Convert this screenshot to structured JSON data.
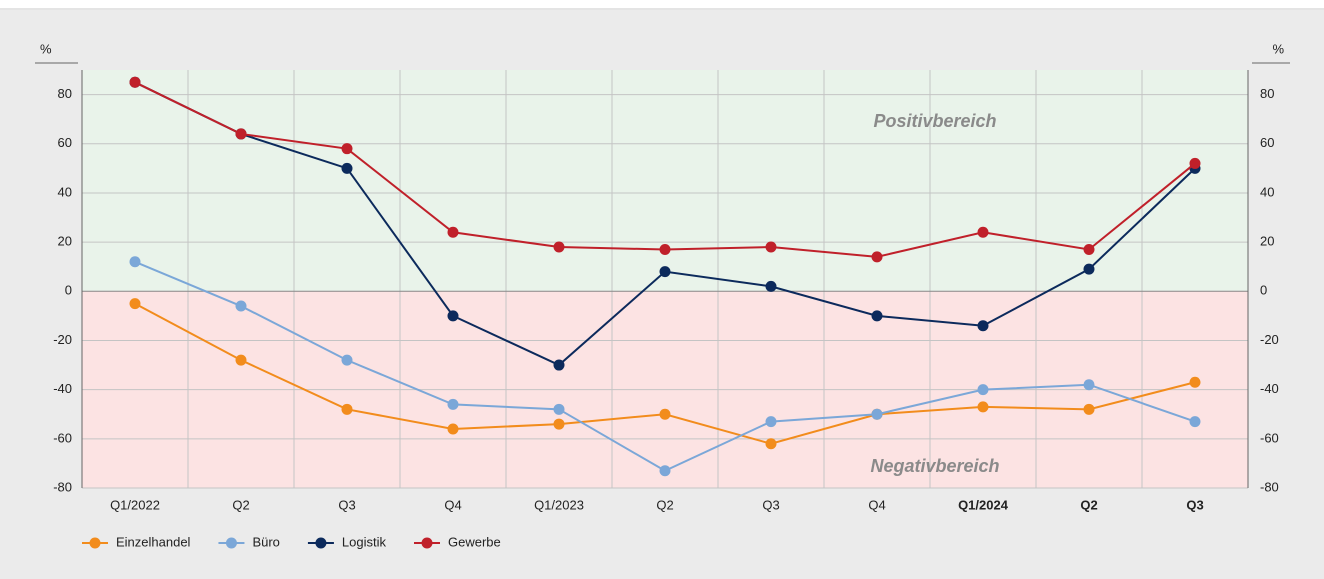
{
  "chart_data": {
    "type": "line",
    "y_unit": "%",
    "categories": [
      "Q1/2022",
      "Q2",
      "Q3",
      "Q4",
      "Q1/2023",
      "Q2",
      "Q3",
      "Q4",
      "Q1/2024",
      "Q2",
      "Q3"
    ],
    "series": [
      {
        "name": "Einzelhandel",
        "color": "#f28c1c",
        "values": [
          -5,
          -28,
          -48,
          -56,
          -54,
          -50,
          -62,
          -50,
          -47,
          -48,
          -37
        ]
      },
      {
        "name": "Büro",
        "color": "#7ba7d8",
        "values": [
          12,
          -6,
          -28,
          -46,
          -48,
          -73,
          -53,
          -50,
          -40,
          -38,
          -53
        ]
      },
      {
        "name": "Logistik",
        "color": "#0c2a5c",
        "values": [
          85,
          64,
          50,
          -10,
          -30,
          8,
          2,
          -10,
          -14,
          9,
          50
        ]
      },
      {
        "name": "Gewerbe",
        "color": "#c0202a",
        "values": [
          85,
          64,
          58,
          24,
          18,
          17,
          18,
          14,
          24,
          17,
          52
        ]
      }
    ],
    "annotations": [
      "Positivbereich",
      "Negativbereich"
    ],
    "ylim": [
      -80,
      90
    ],
    "yticks": [
      -80,
      -60,
      -40,
      -20,
      0,
      20,
      40,
      60,
      80
    ],
    "grid": true,
    "legend": "bottom"
  }
}
